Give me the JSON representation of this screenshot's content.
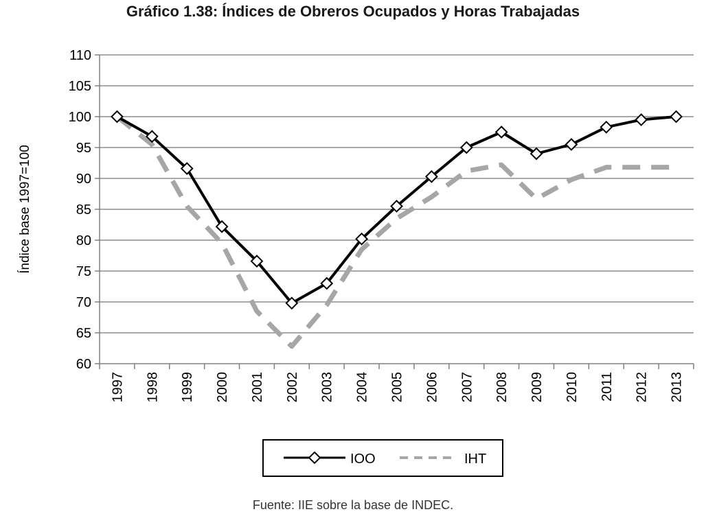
{
  "title": "Gráfico 1.38: Índices de Obreros Ocupados y Horas Trabajadas",
  "source": "Fuente: IIE sobre la base de INDEC.",
  "chart_data": {
    "type": "line",
    "title": "Gráfico 1.38: Índices de Obreros Ocupados y Horas Trabajadas",
    "xlabel": "",
    "ylabel": "Índice base 1997=100",
    "ylim": [
      60,
      110
    ],
    "yticks": [
      60,
      65,
      70,
      75,
      80,
      85,
      90,
      95,
      100,
      105,
      110
    ],
    "grid": true,
    "legend_position": "bottom",
    "categories": [
      "1997",
      "1998",
      "1999",
      "2000",
      "2001",
      "2002",
      "2003",
      "2004",
      "2005",
      "2006",
      "2007",
      "2008",
      "2009",
      "2010",
      "2011",
      "2012",
      "2013"
    ],
    "series": [
      {
        "name": "IOO",
        "color": "#000000",
        "style": "solid",
        "marker": "diamond",
        "values": [
          100,
          96.8,
          91.6,
          82.2,
          76.6,
          69.8,
          73.0,
          80.2,
          85.5,
          90.3,
          95.0,
          97.5,
          94.0,
          95.5,
          98.3,
          99.5,
          100
        ]
      },
      {
        "name": "IHT",
        "color": "#a6a6a6",
        "style": "dashed",
        "marker": "none",
        "values": [
          100,
          95.5,
          85.5,
          79.5,
          68.5,
          62.8,
          69.5,
          78.5,
          83.5,
          87.0,
          91.2,
          92.2,
          86.7,
          89.8,
          91.8,
          91.8,
          91.8
        ]
      }
    ]
  }
}
